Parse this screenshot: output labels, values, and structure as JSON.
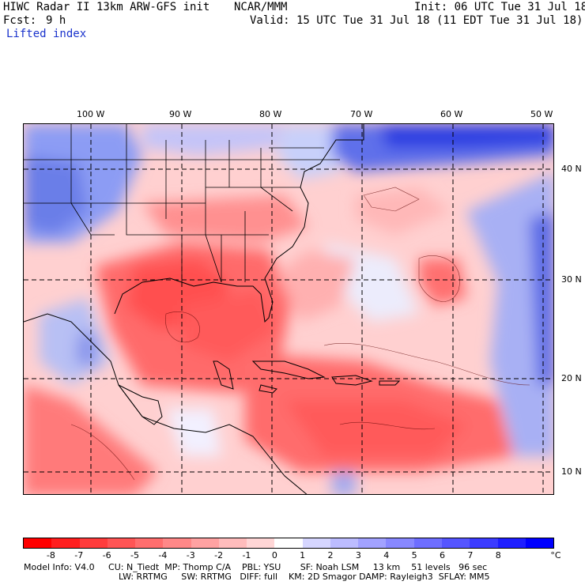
{
  "header": {
    "model_title": "HIWC Radar II 13km ARW-GFS init",
    "org": "NCAR/MMM",
    "init": "Init: 06 UTC Tue 31 Jul 18",
    "fcst_label": "Fcst:",
    "fcst_value": "9 h",
    "valid": "Valid: 15 UTC Tue 31 Jul 18 (11 EDT Tue 31 Jul 18)",
    "field": "Lifted index"
  },
  "axes": {
    "lon_labels": [
      "100 W",
      "90 W",
      "80 W",
      "70 W",
      "60 W",
      "50 W"
    ],
    "lat_labels": [
      "40 N",
      "30 N",
      "20 N",
      "10 N"
    ]
  },
  "colorbar": {
    "ticks": [
      "-8",
      "-7",
      "-6",
      "-5",
      "-4",
      "-3",
      "-2",
      "-1",
      "0",
      "1",
      "2",
      "3",
      "4",
      "5",
      "6",
      "7",
      "8"
    ],
    "unit": "°C",
    "colors": [
      "#ff0000",
      "#ff1e1e",
      "#ff3c3c",
      "#ff5555",
      "#ff6e6e",
      "#ff8888",
      "#ffa2a2",
      "#ffbcbc",
      "#ffd6d6",
      "#ffffff",
      "#d6d6ff",
      "#bcbcff",
      "#a2a2ff",
      "#8888ff",
      "#6e6eff",
      "#5555ff",
      "#3c3cff",
      "#1e1eff",
      "#0000ff"
    ]
  },
  "model_info": {
    "line1": "Model Info: V4.0     CU: N_Tiedt  MP: Thomp C/A    PBL: YSU       SF: Noah LSM     13 km    51 levels   96 sec",
    "line2": "LW: RRTMG     SW: RRTMG   DIFF: full    KM: 2D Smagor DAMP: Rayleigh3  SFLAY: MM5"
  }
}
